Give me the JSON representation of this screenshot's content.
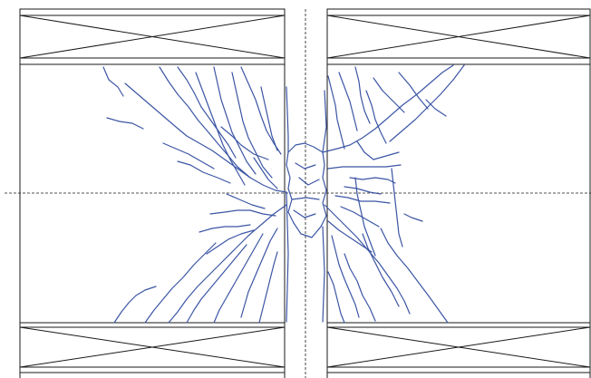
{
  "diagram": {
    "description": "",
    "colors": {
      "frame": "#1a1a1a",
      "axis": "#1a1a1a",
      "crack": "#3b55a4",
      "background": "#ffffff"
    },
    "components": [
      {
        "name": "support-block-top-left",
        "type": "cross-braced block"
      },
      {
        "name": "support-block-top-right",
        "type": "cross-braced block"
      },
      {
        "name": "support-block-bottom-left",
        "type": "cross-braced block"
      },
      {
        "name": "support-block-bottom-right",
        "type": "cross-braced block"
      },
      {
        "name": "central-column",
        "type": "column"
      },
      {
        "name": "horizontal-centerline",
        "type": "dashed axis"
      },
      {
        "name": "vertical-centerline",
        "type": "dashed axis"
      },
      {
        "name": "crack-pattern",
        "type": "polyline set"
      }
    ]
  }
}
